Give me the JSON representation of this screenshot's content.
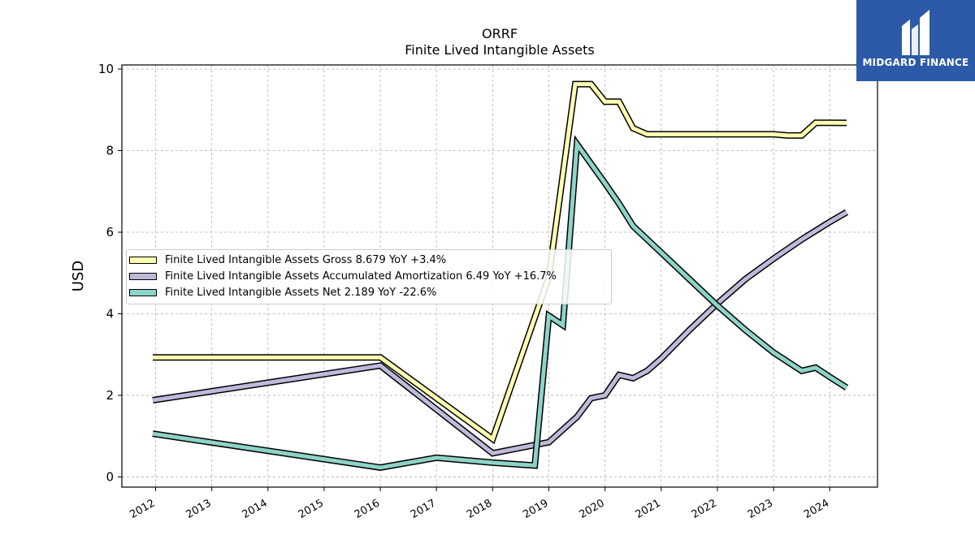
{
  "logo": {
    "text": "MIDGARD FINANCE",
    "color": "#2d5aa8"
  },
  "chart_data": {
    "type": "line",
    "title": "ORRF",
    "subtitle": "Finite Lived Intangible Assets",
    "xlabel": "",
    "ylabel": "USD",
    "xlim": [
      2011.4,
      2024.85
    ],
    "ylim": [
      -0.25,
      10.1
    ],
    "x_ticks": [
      "2012",
      "2013",
      "2014",
      "2015",
      "2016",
      "2017",
      "2018",
      "2019",
      "2020",
      "2021",
      "2022",
      "2023",
      "2024"
    ],
    "y_ticks": [
      "0",
      "2",
      "4",
      "6",
      "8",
      "10"
    ],
    "grid": true,
    "legend_position": "center-left",
    "series": [
      {
        "name": "Finite Lived Intangible Assets Gross",
        "legend_label": "Finite Lived Intangible Assets Gross  8.679 YoY +3.4%",
        "color": "#ffffb3",
        "points": [
          [
            2011.95,
            2.93
          ],
          [
            2016.0,
            2.93
          ],
          [
            2018.0,
            0.93
          ],
          [
            2019.0,
            4.9
          ],
          [
            2019.47,
            9.63
          ],
          [
            2019.75,
            9.63
          ],
          [
            2020.0,
            9.2
          ],
          [
            2020.25,
            9.2
          ],
          [
            2020.5,
            8.55
          ],
          [
            2020.75,
            8.4
          ],
          [
            2021.0,
            8.4
          ],
          [
            2022.0,
            8.4
          ],
          [
            2023.0,
            8.4
          ],
          [
            2023.25,
            8.37
          ],
          [
            2023.5,
            8.37
          ],
          [
            2023.75,
            8.68
          ],
          [
            2024.0,
            8.68
          ],
          [
            2024.3,
            8.679
          ]
        ]
      },
      {
        "name": "Finite Lived Intangible Assets Accumulated Amortization",
        "legend_label": "Finite Lived Intangible Assets Accumulated Amortization  6.49 YoY +16.7%",
        "color": "#bebada",
        "points": [
          [
            2011.95,
            1.88
          ],
          [
            2016.0,
            2.73
          ],
          [
            2018.0,
            0.58
          ],
          [
            2019.0,
            0.85
          ],
          [
            2019.5,
            1.47
          ],
          [
            2019.75,
            1.93
          ],
          [
            2020.0,
            2.0
          ],
          [
            2020.25,
            2.5
          ],
          [
            2020.5,
            2.42
          ],
          [
            2020.75,
            2.6
          ],
          [
            2021.0,
            2.9
          ],
          [
            2021.5,
            3.6
          ],
          [
            2022.0,
            4.25
          ],
          [
            2022.5,
            4.85
          ],
          [
            2023.0,
            5.35
          ],
          [
            2023.5,
            5.82
          ],
          [
            2024.0,
            6.25
          ],
          [
            2024.3,
            6.49
          ]
        ]
      },
      {
        "name": "Finite Lived Intangible Assets Net",
        "legend_label": "Finite Lived Intangible Assets Net  2.189 YoY -22.6%",
        "color": "#8dd3c7",
        "points": [
          [
            2011.95,
            1.06
          ],
          [
            2016.0,
            0.23
          ],
          [
            2017.0,
            0.47
          ],
          [
            2018.0,
            0.35
          ],
          [
            2018.75,
            0.28
          ],
          [
            2019.0,
            3.95
          ],
          [
            2019.25,
            3.72
          ],
          [
            2019.5,
            8.16
          ],
          [
            2020.0,
            7.2
          ],
          [
            2020.25,
            6.7
          ],
          [
            2020.5,
            6.15
          ],
          [
            2021.0,
            5.5
          ],
          [
            2021.5,
            4.85
          ],
          [
            2022.0,
            4.2
          ],
          [
            2022.5,
            3.6
          ],
          [
            2023.0,
            3.05
          ],
          [
            2023.5,
            2.6
          ],
          [
            2023.75,
            2.68
          ],
          [
            2024.0,
            2.45
          ],
          [
            2024.3,
            2.189
          ]
        ]
      }
    ]
  }
}
